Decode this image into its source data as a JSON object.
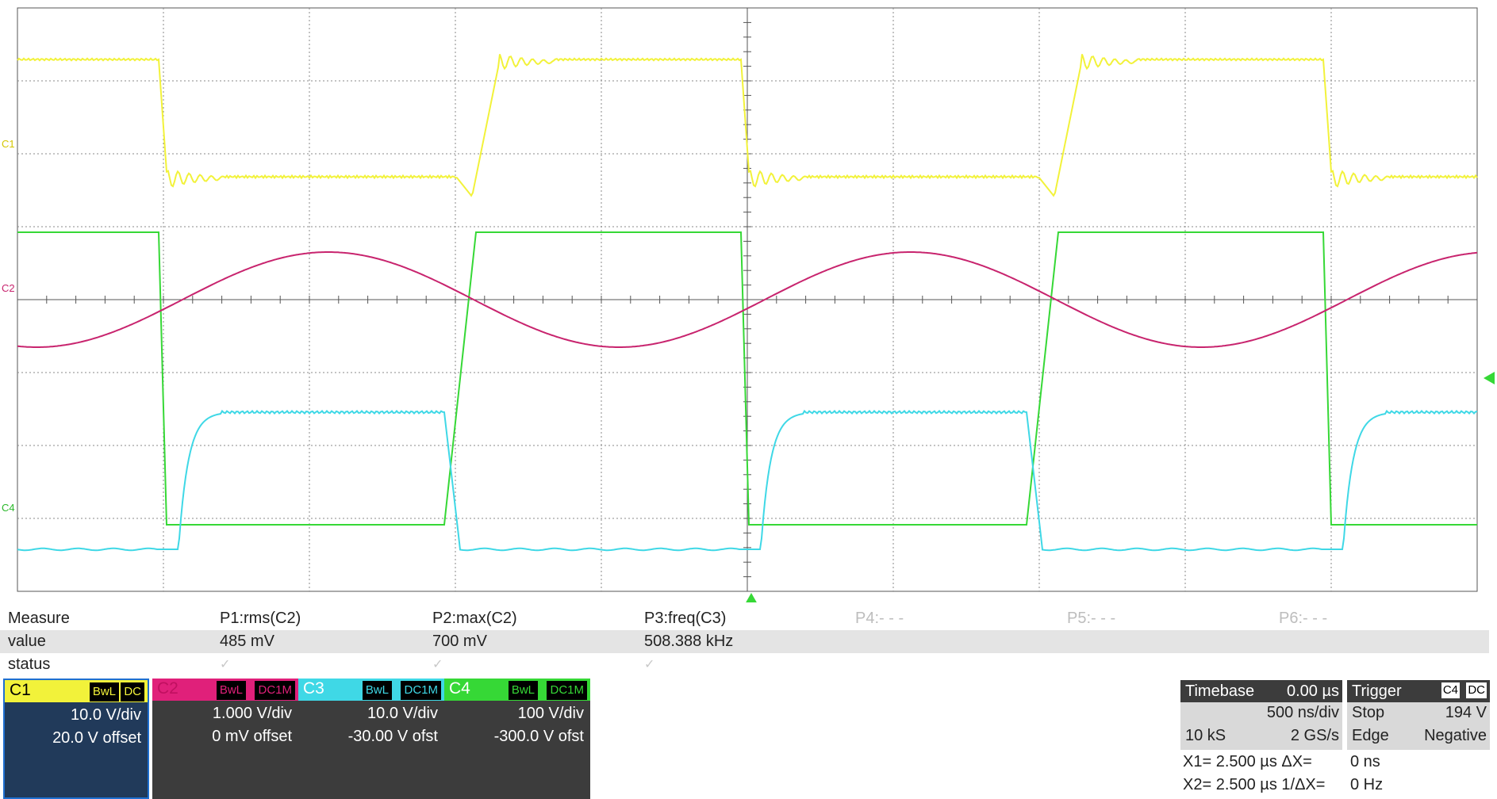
{
  "colors": {
    "c1": "#f2f23a",
    "c2": "#c8246e",
    "c3": "#3fd8e6",
    "c4": "#36d836",
    "grid": "#8a8a8a",
    "border": "#555555"
  },
  "markers": {
    "c1_label": "C1",
    "c2_label": "C2",
    "c3_label": "C4"
  },
  "measure": {
    "header": [
      "Measure",
      "P1:rms(C2)",
      "P2:max(C2)",
      "P3:freq(C3)",
      "P4:- - -",
      "P5:- - -",
      "P6:- - -"
    ],
    "value_label": "value",
    "values": [
      "485 mV",
      "700 mV",
      "508.388 kHz"
    ],
    "status_label": "status",
    "status": [
      "✓",
      "✓",
      "✓"
    ]
  },
  "channels": [
    {
      "name": "C1",
      "bw": "BwL",
      "coupling": "DC",
      "vdiv": "10.0 V/div",
      "offset": "20.0 V offset",
      "color": "#f2f23a",
      "selected": true
    },
    {
      "name": "C2",
      "bw": "BwL",
      "coupling": "DC1M",
      "vdiv": "1.000 V/div",
      "offset": "0 mV offset",
      "color": "#e0207a",
      "selected": false
    },
    {
      "name": "C3",
      "bw": "BwL",
      "coupling": "DC1M",
      "vdiv": "10.0 V/div",
      "offset": "-30.00 V ofst",
      "color": "#3fd8e6",
      "selected": false
    },
    {
      "name": "C4",
      "bw": "BwL",
      "coupling": "DC1M",
      "vdiv": "100 V/div",
      "offset": "-300.0 V ofst",
      "color": "#36d836",
      "selected": false
    }
  ],
  "timebase": {
    "label": "Timebase",
    "delay": "0.00 µs",
    "tdiv": "500 ns/div",
    "samples": "10 kS",
    "rate": "2 GS/s"
  },
  "trigger": {
    "label": "Trigger",
    "source": "C4",
    "coupling": "DC",
    "mode": "Stop",
    "level": "194 V",
    "type": "Edge",
    "slope": "Negative"
  },
  "cursors": {
    "x1": "X1= 2.500 µs ΔX=",
    "dx": "0 ns",
    "x2": "X2= 2.500 µs 1/ΔX=",
    "inv_dx": "0 Hz"
  }
}
